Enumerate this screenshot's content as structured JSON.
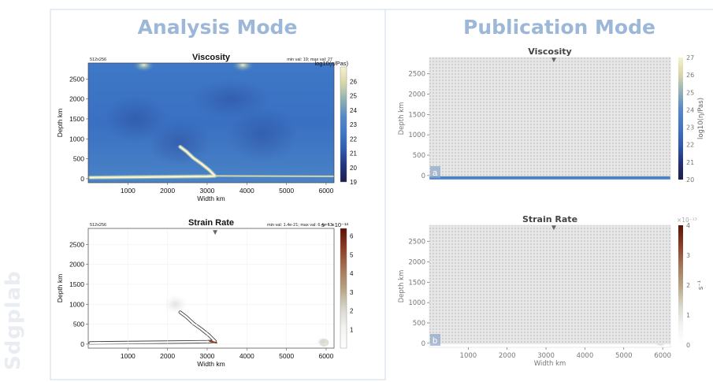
{
  "logo": {
    "text": "Sdgplab"
  },
  "panels": [
    {
      "heading": "Analysis Mode"
    },
    {
      "heading": "Publication Mode"
    }
  ],
  "colors": {
    "heading": "#9cb7d7",
    "frame": "#cfdbe8",
    "colorbar_viscosity": [
      "#1c1f4c",
      "#22337f",
      "#2f5cae",
      "#3f77c6",
      "#5488c8",
      "#8fb0b3",
      "#d8d6a8",
      "#f6f1cf"
    ],
    "colorbar_strain": [
      "#ffffff",
      "#f3f3f1",
      "#d8d6cb",
      "#b7a282",
      "#a57454",
      "#8c3d24",
      "#5b1207"
    ]
  },
  "chart_data": [
    {
      "type": "heatmap",
      "panel": "analysis",
      "field": "viscosity",
      "title": "Viscosity",
      "resolution": "512x256",
      "annotation": "min val: 19; max val: 27",
      "xlabel": "Width km",
      "ylabel": "Depth km",
      "x_ticks": [
        1000,
        2000,
        3000,
        4000,
        5000,
        6000
      ],
      "y_ticks": [
        0,
        500,
        1000,
        1500,
        2000,
        2500
      ],
      "xlim": [
        0,
        6200
      ],
      "ylim": [
        2900,
        -100
      ],
      "colorbar": {
        "label": "log10(η/Pas)",
        "ticks": [
          19,
          20,
          21,
          22,
          23,
          24,
          25,
          26
        ],
        "range": [
          19,
          27
        ]
      }
    },
    {
      "type": "heatmap",
      "panel": "analysis",
      "field": "strain_rate",
      "title": "Strain Rate",
      "resolution": "512x256",
      "annotation": "min val: 1.4e-21; max val: 6.4e-13",
      "xlabel": "Width km",
      "ylabel": "Depth km",
      "x_ticks": [
        1000,
        2000,
        3000,
        4000,
        5000,
        6000
      ],
      "y_ticks": [
        0,
        500,
        1000,
        1500,
        2000,
        2500
      ],
      "xlim": [
        0,
        6200
      ],
      "ylim": [
        2900,
        -100
      ],
      "marker": {
        "x": 3200,
        "label": "▼"
      },
      "colorbar": {
        "label": "s⁻¹ ×10⁻¹³",
        "ticks": [
          1,
          2,
          3,
          4,
          5,
          6
        ],
        "range": [
          0,
          6.4
        ]
      }
    },
    {
      "type": "heatmap",
      "panel": "publication",
      "field": "viscosity",
      "title": "Viscosity",
      "panel_letter": "a",
      "xlabel": "",
      "ylabel": "Depth km",
      "y_ticks": [
        0,
        500,
        1000,
        1500,
        2000,
        2500
      ],
      "xlim": [
        0,
        6200
      ],
      "ylim": [
        2900,
        -100
      ],
      "marker": {
        "x": 3200,
        "label": "▼"
      },
      "colorbar": {
        "label": "log10(η/Pas)",
        "ticks": [
          20,
          21,
          22,
          23,
          24,
          25,
          26,
          27
        ],
        "range": [
          20,
          27
        ]
      }
    },
    {
      "type": "heatmap",
      "panel": "publication",
      "field": "strain_rate",
      "title": "Strain Rate",
      "panel_letter": "b",
      "xlabel": "Width km",
      "ylabel": "Depth km",
      "x_ticks": [
        1000,
        2000,
        3000,
        4000,
        5000,
        6000
      ],
      "y_ticks": [
        0,
        500,
        1000,
        1500,
        2000,
        2500
      ],
      "xlim": [
        0,
        6200
      ],
      "ylim": [
        2900,
        -100
      ],
      "marker": {
        "x": 3200,
        "label": "▼"
      },
      "colorbar": {
        "label": "s⁻¹",
        "exponent": "×10⁻¹³",
        "ticks": [
          0,
          1,
          2,
          3,
          4
        ],
        "range": [
          0,
          4
        ]
      }
    }
  ]
}
